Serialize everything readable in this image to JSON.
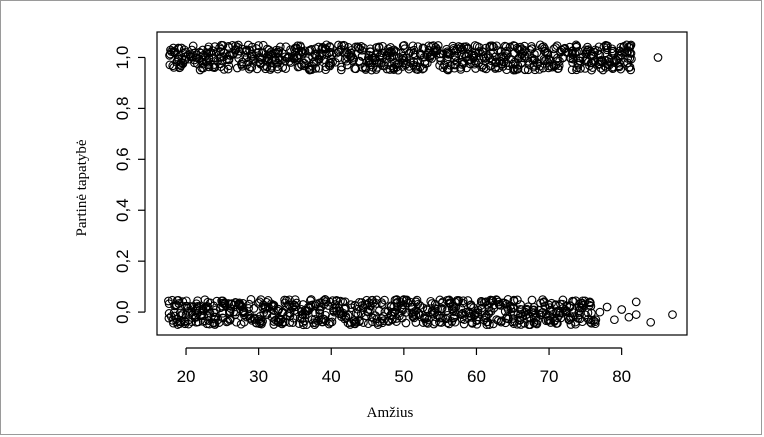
{
  "chart_data": {
    "type": "scatter",
    "title": "",
    "xlabel": "Amžius",
    "ylabel": "Partinė tapatybė",
    "xlim": [
      16,
      89
    ],
    "ylim": [
      -0.09,
      1.1
    ],
    "x_ticks": [
      20,
      30,
      40,
      50,
      60,
      70,
      80
    ],
    "x_tick_labels": [
      "20",
      "30",
      "40",
      "50",
      "60",
      "70",
      "80"
    ],
    "y_ticks": [
      0.0,
      0.2,
      0.4,
      0.6,
      0.8,
      1.0
    ],
    "y_tick_labels": [
      "0,0",
      "0,2",
      "0,4",
      "0,6",
      "0,8",
      "1,0"
    ],
    "grid": false,
    "legend": "none",
    "marker": "open-circle",
    "jitter_y": 0.05,
    "series": [
      {
        "group_value": 1,
        "x_range": [
          18,
          81
        ],
        "points_per_age": 14,
        "sparse_tail": [
          [
            74,
            0.97
          ],
          [
            75,
            1.03
          ],
          [
            76,
            0.96
          ],
          [
            77,
            1.01
          ],
          [
            78,
            1.03
          ],
          [
            79,
            0.98
          ],
          [
            80,
            1.02
          ],
          [
            81,
            0.96
          ],
          [
            81,
            1.04
          ],
          [
            85,
            1.0
          ]
        ]
      },
      {
        "group_value": 0,
        "x_range": [
          18,
          76
        ],
        "points_per_age": 14,
        "sparse_tail": [
          [
            77,
            0.0
          ],
          [
            78,
            0.02
          ],
          [
            79,
            -0.03
          ],
          [
            80,
            0.01
          ],
          [
            81,
            -0.02
          ],
          [
            82,
            0.04
          ],
          [
            82,
            -0.01
          ],
          [
            84,
            -0.04
          ],
          [
            87,
            -0.01
          ]
        ]
      }
    ]
  }
}
